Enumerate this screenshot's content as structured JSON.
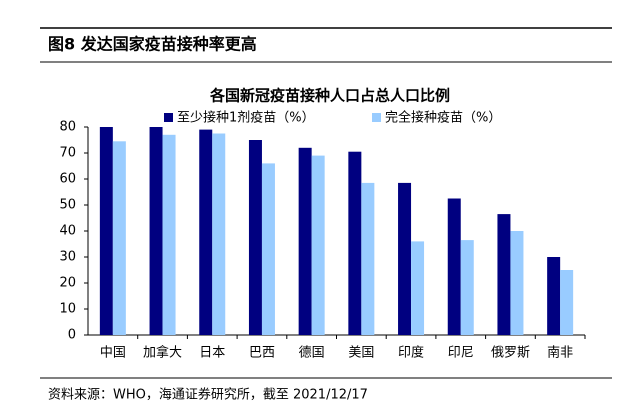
{
  "header": {
    "title": "图8  发达国家疫苗接种率更高"
  },
  "chart_data": {
    "type": "bar",
    "title": "各国新冠疫苗接种人口占总人口比例",
    "categories": [
      "中国",
      "加拿大",
      "日本",
      "巴西",
      "德国",
      "美国",
      "印度",
      "印尼",
      "俄罗斯",
      "南非"
    ],
    "series": [
      {
        "name": "至少接种1剂疫苗（%）",
        "color": "#000080",
        "values": [
          80,
          80,
          79,
          75,
          72,
          70.5,
          58.5,
          52.5,
          46.5,
          30
        ]
      },
      {
        "name": "完全接种疫苗（%）",
        "color": "#99ccff",
        "values": [
          74.5,
          77,
          77.5,
          66,
          69,
          58.5,
          36,
          36.5,
          40,
          25
        ]
      }
    ],
    "ylim": [
      0,
      80
    ],
    "yticks": [
      0,
      10,
      20,
      30,
      40,
      50,
      60,
      70,
      80
    ]
  },
  "footer": {
    "source": "资料来源：WHO，海通证券研究所，截至 2021/12/17"
  }
}
